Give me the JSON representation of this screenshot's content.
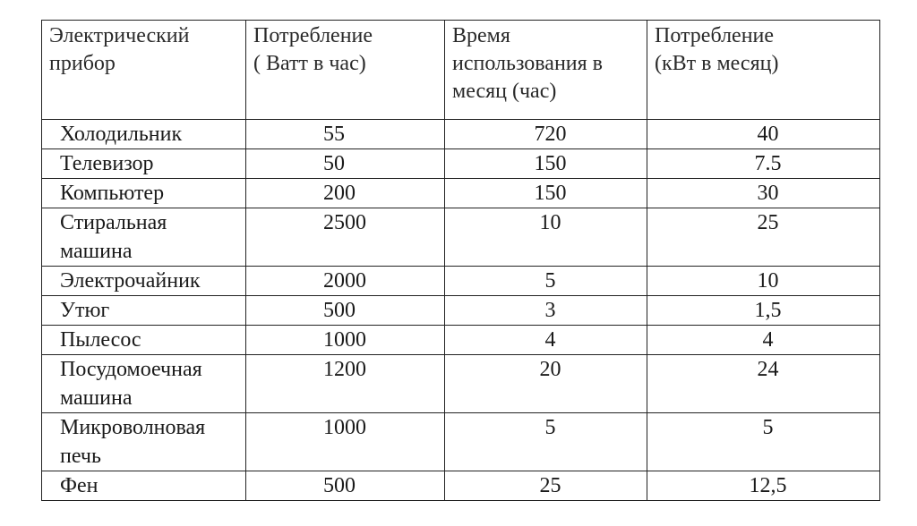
{
  "table": {
    "headers": [
      "Электрический\nприбор",
      "Потребление\n( Ватт в час)",
      "Время\nиспользования в\nмесяц (час)",
      "Потребление\n(кВт в месяц)"
    ],
    "rows": [
      {
        "name": "Холодильник",
        "watts": "55",
        "hours": "720",
        "kwh": "40"
      },
      {
        "name": "Телевизор",
        "watts": "50",
        "hours": "150",
        "kwh": "7.5"
      },
      {
        "name": "Компьютер",
        "watts": "200",
        "hours": "150",
        "kwh": "30"
      },
      {
        "name": "Стиральная\nмашина",
        "watts": "2500",
        "hours": "10",
        "kwh": "25"
      },
      {
        "name": "Электрочайник",
        "watts": "2000",
        "hours": "5",
        "kwh": "10"
      },
      {
        "name": "Утюг",
        "watts": "500",
        "hours": "3",
        "kwh": "1,5"
      },
      {
        "name": "Пылесос",
        "watts": "1000",
        "hours": "4",
        "kwh": "4"
      },
      {
        "name": "Посудомоечная\nмашина",
        "watts": "1200",
        "hours": "20",
        "kwh": "24"
      },
      {
        "name": "Микроволновая\nпечь",
        "watts": "1000",
        "hours": "5",
        "kwh": "5"
      },
      {
        "name": "Фен",
        "watts": "500",
        "hours": "25",
        "kwh": "12,5"
      }
    ]
  }
}
